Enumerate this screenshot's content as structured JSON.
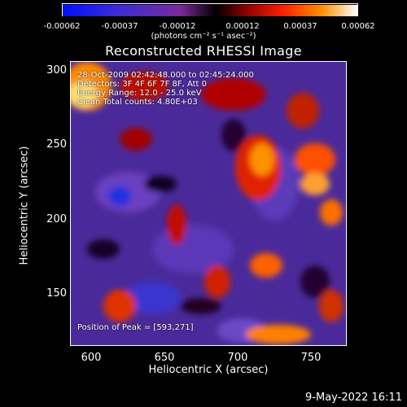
{
  "colorbar": {
    "ticks": [
      "-0.00062",
      "-0.00037",
      "-0.00012",
      "0.00012",
      "0.00037",
      "0.00062"
    ],
    "units": "(photons cm⁻² s⁻¹ asec⁻²)"
  },
  "title": "Reconstructed RHESSI Image",
  "info": {
    "line1": "28-Oct-2009 02:42:48.000 to 02:45:24.000",
    "line2": "Detectors: 3F 4F 6F 7F 8F, Att 0",
    "line3": "Energy Range: 12.0 - 25.0 keV",
    "line4": "Clean    Total counts: 4.80E+03",
    "peak": "Position of Peak = [593,271]"
  },
  "axes": {
    "xlabel": "Heliocentric X (arcsec)",
    "ylabel": "Heliocentric Y (arcsec)",
    "xticks": [
      "600",
      "650",
      "700",
      "750"
    ],
    "yticks": [
      "300",
      "250",
      "200",
      "150"
    ]
  },
  "footer": {
    "date": "9-May-2022 16:11"
  },
  "colors": {
    "low": "#1a1aff",
    "mid": "#5a3cb0",
    "high": "#ff8a00",
    "peak": "#ffffc0"
  }
}
